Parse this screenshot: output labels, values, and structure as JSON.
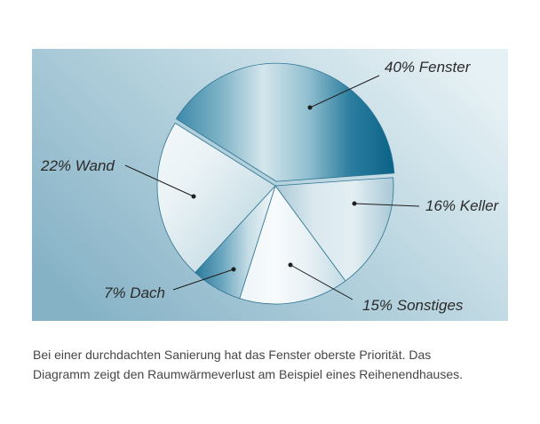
{
  "chart_data": {
    "type": "pie",
    "slices": [
      {
        "label": "40% Fenster",
        "value": 40,
        "exploded": true,
        "colors": [
          "#3d89a9",
          "#7db2c6",
          "#d4e6ed",
          "#93c0d0",
          "#2b7d9f",
          "#0a6387"
        ]
      },
      {
        "label": "16% Keller",
        "value": 16,
        "exploded": false,
        "colors": [
          "#aac9d6",
          "#dbe9ef",
          "#e2eef2",
          "#a8c8d6"
        ]
      },
      {
        "label": "15% Sonstiges",
        "value": 15,
        "exploded": false,
        "colors": [
          "#eef5f8",
          "#f8fbfc",
          "#e6f0f4",
          "#c3dbe5"
        ]
      },
      {
        "label": "7% Dach",
        "value": 7,
        "exploded": false,
        "colors": [
          "#2a799b",
          "#6aa5be",
          "#c6dde6",
          "#f4f8fa"
        ]
      },
      {
        "label": "22% Wand",
        "value": 22,
        "exploded": false,
        "colors": [
          "#f3f8fa",
          "#e9f2f5",
          "#cfe2e9",
          "#a9c9d6"
        ]
      }
    ],
    "outline_color": "#2f7593"
  },
  "caption": {
    "lines": [
      "Bei einer durchdachten Sanierung hat das Fenster oberste Priorität. Das",
      "Diagramm zeigt den Raumwärmeverlust am Beispiel eines Reihenendhauses."
    ]
  }
}
